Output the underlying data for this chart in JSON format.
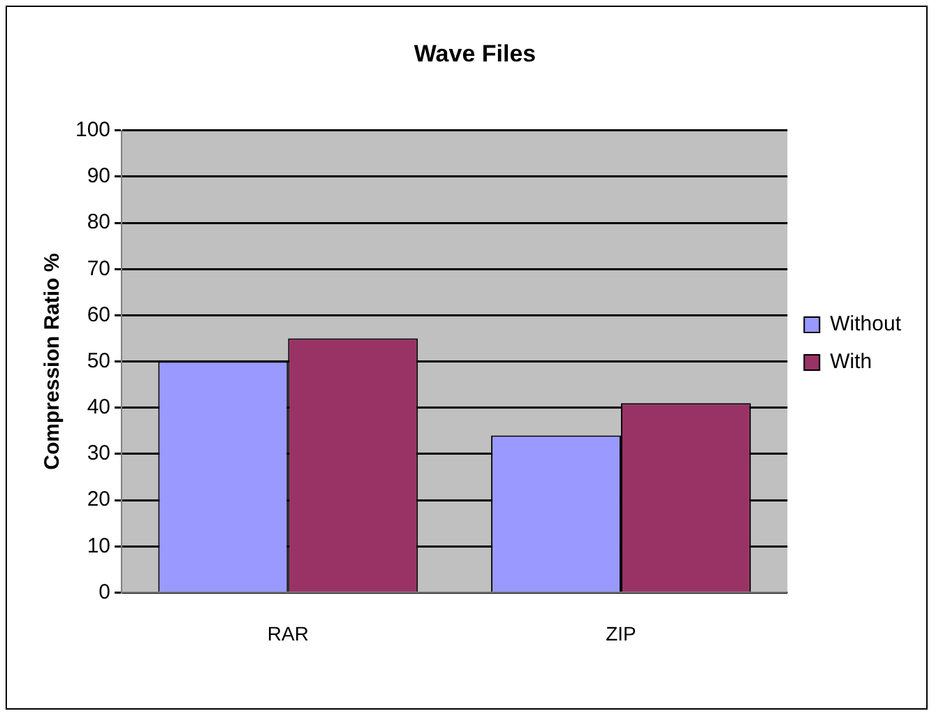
{
  "chart_data": {
    "type": "bar",
    "title": "Wave Files",
    "ylabel": "Compression Ratio %",
    "categories": [
      "RAR",
      "ZIP"
    ],
    "series": [
      {
        "name": "Without",
        "color": "#9999ff",
        "values": [
          50,
          34
        ]
      },
      {
        "name": "With",
        "color": "#993366",
        "values": [
          55,
          41
        ]
      }
    ],
    "ylim": [
      0,
      100
    ],
    "yticks": [
      0,
      10,
      20,
      30,
      40,
      50,
      60,
      70,
      80,
      90,
      100
    ],
    "grid": "y",
    "legend": "right"
  }
}
